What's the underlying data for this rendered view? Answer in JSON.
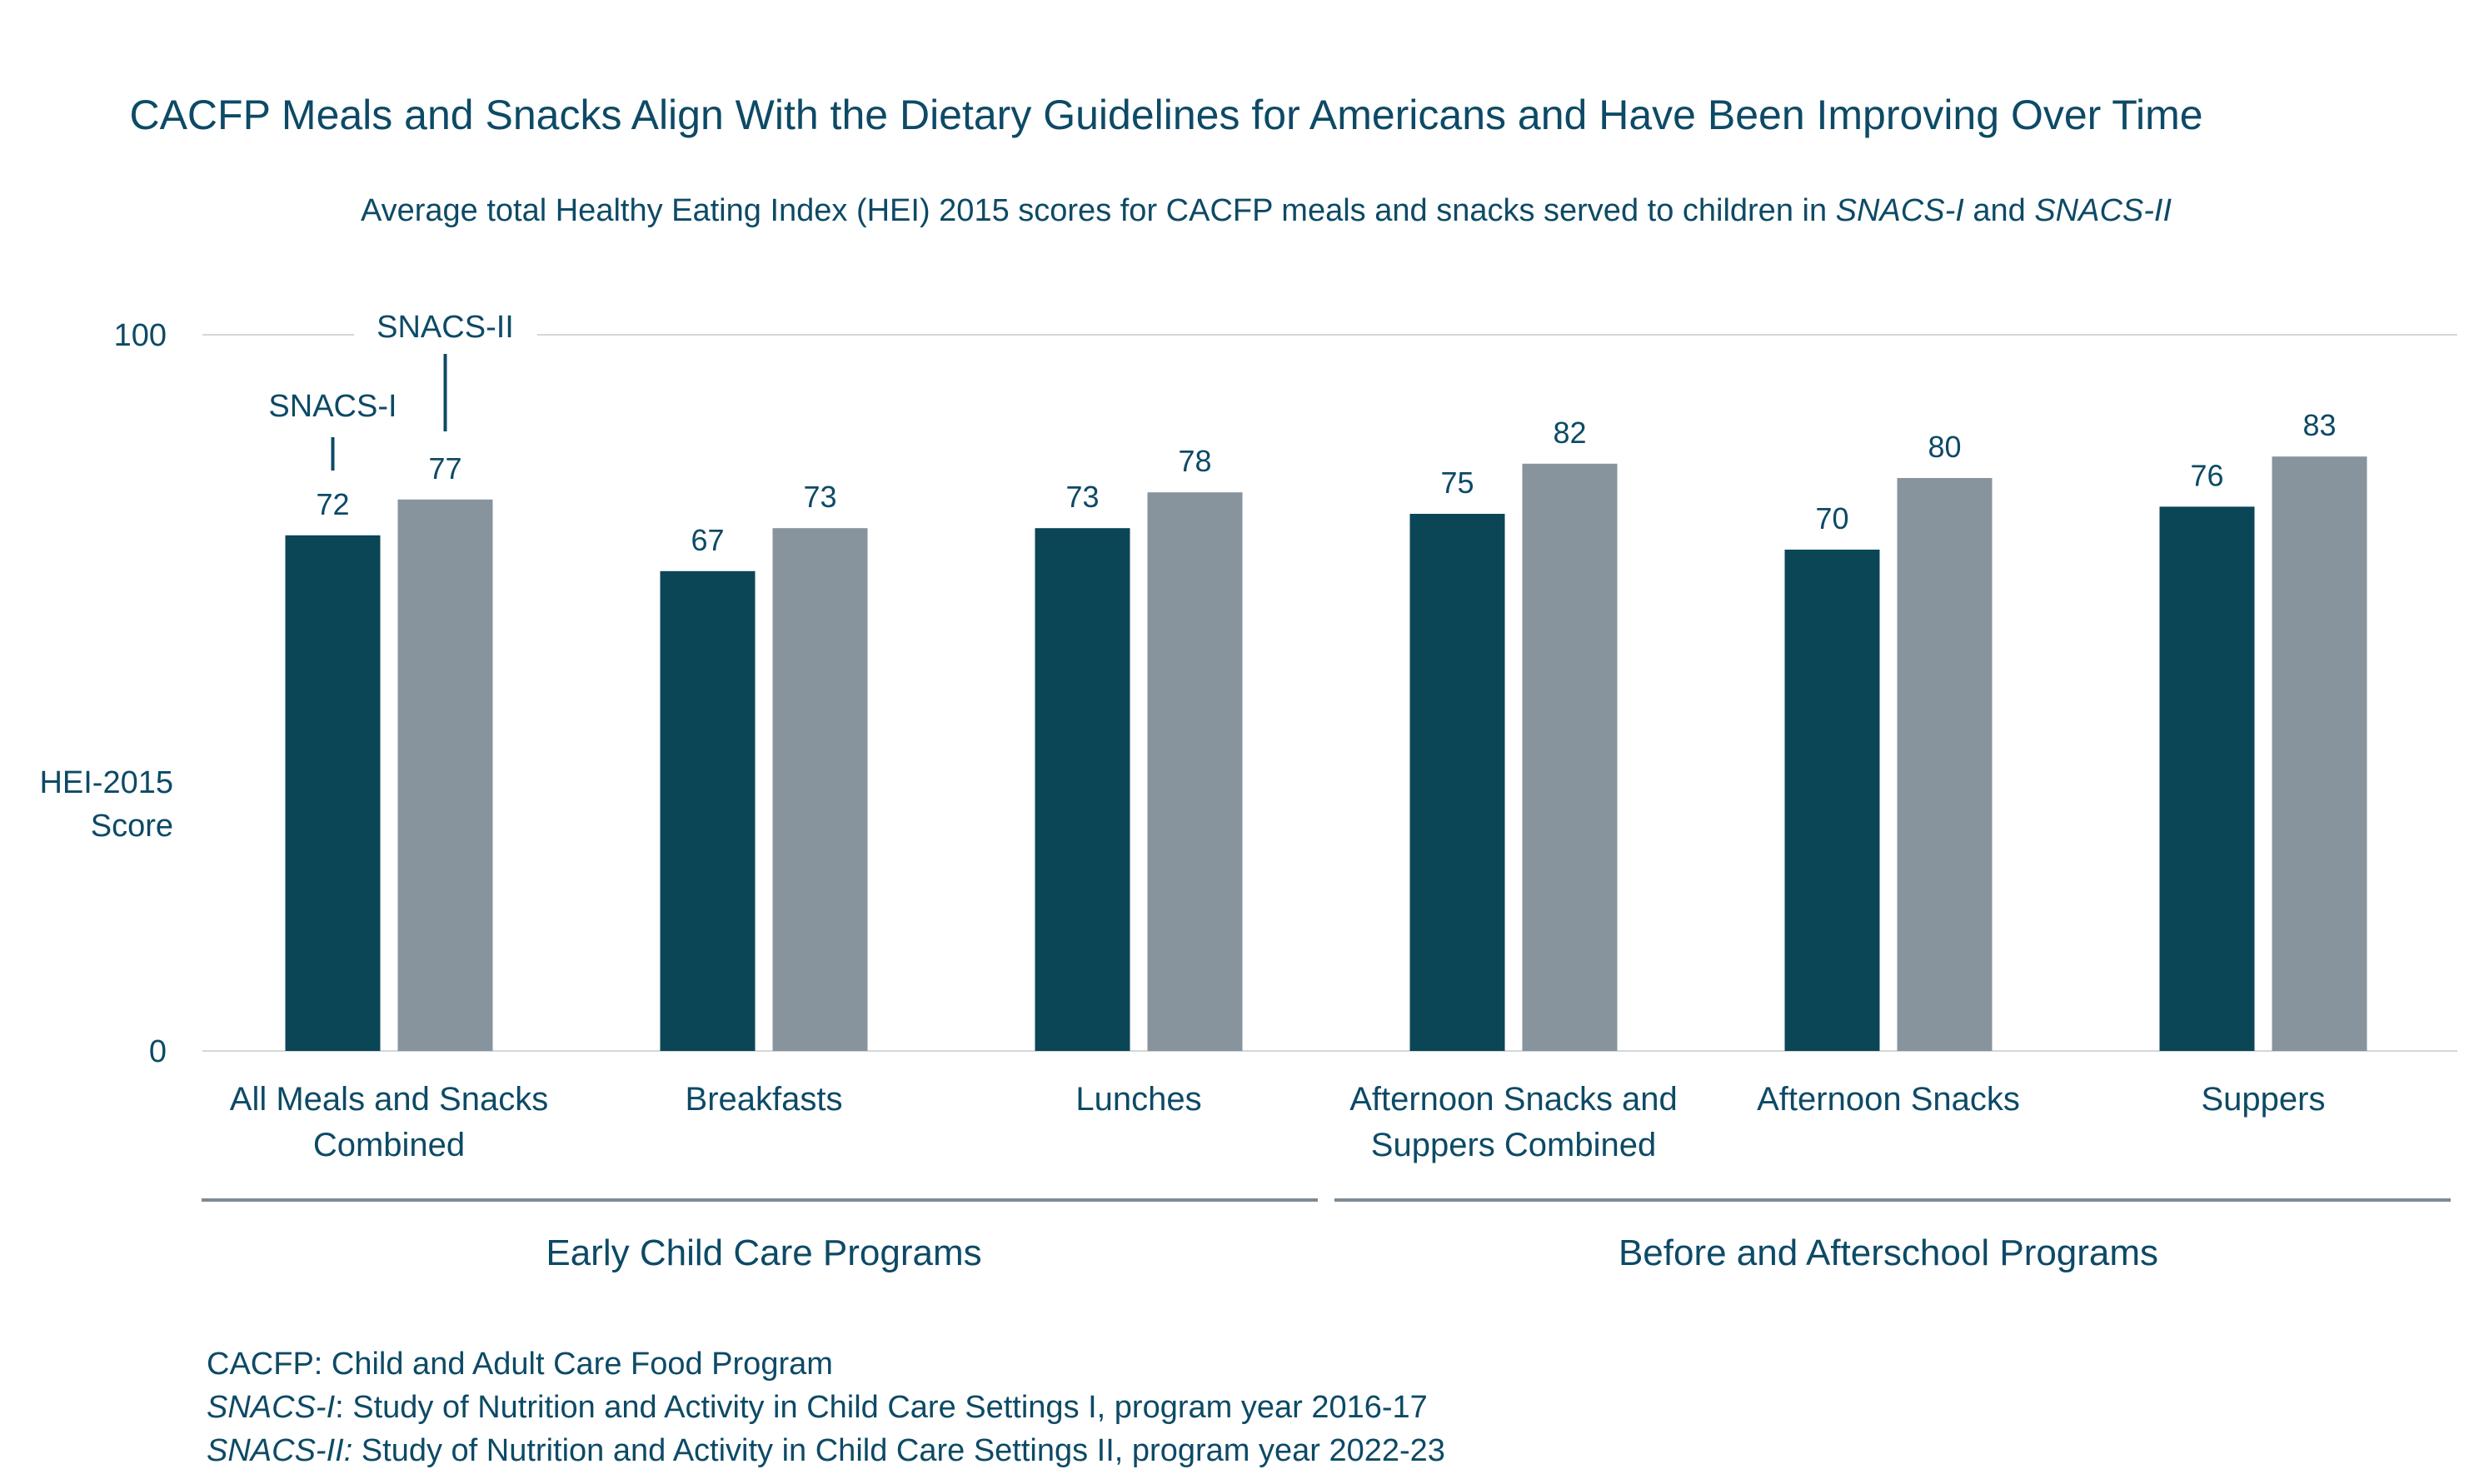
{
  "chart_data": {
    "type": "bar",
    "title": "CACFP Meals and Snacks Align With the Dietary Guidelines for Americans and Have Been Improving Over Time",
    "subtitle": {
      "prefix": "Average total Healthy Eating Index (HEI) 2015 scores for CACFP meals and snacks served to children in ",
      "italic1": "SNACS-I",
      "mid": " and ",
      "italic2": "SNACS-II"
    },
    "ylabel_lines": [
      "HEI-2015",
      "Score"
    ],
    "ylim": [
      0,
      100
    ],
    "yticks": [
      "0",
      "100"
    ],
    "grid": "top-line-only",
    "categories": [
      [
        "All Meals and Snacks",
        "Combined"
      ],
      [
        "Breakfasts"
      ],
      [
        "Lunches"
      ],
      [
        "Afternoon Snacks and",
        "Suppers Combined"
      ],
      [
        "Afternoon Snacks"
      ],
      [
        "Suppers"
      ]
    ],
    "groups": [
      {
        "label": "Early Child Care Programs",
        "categories": [
          0,
          1,
          2
        ]
      },
      {
        "label": "Before and Afterschool Programs",
        "categories": [
          3,
          4,
          5
        ]
      }
    ],
    "series": [
      {
        "name": "SNACS-I",
        "color": "#0b4657",
        "values": [
          72,
          67,
          73,
          75,
          70,
          76
        ]
      },
      {
        "name": "SNACS-II",
        "color": "#87949d",
        "values": [
          77,
          73,
          78,
          82,
          80,
          83
        ]
      }
    ],
    "legend": "callouts above first category"
  },
  "footnotes": [
    {
      "italic": "",
      "text": "CACFP: Child and Adult Care Food Program"
    },
    {
      "italic": "SNACS-I",
      "text": ": Study of Nutrition and Activity in Child Care Settings I, program year 2016-17"
    },
    {
      "italic": "SNACS-II:",
      "text": " Study of Nutrition and Activity in Child Care Settings II, program year 2022-23"
    }
  ]
}
